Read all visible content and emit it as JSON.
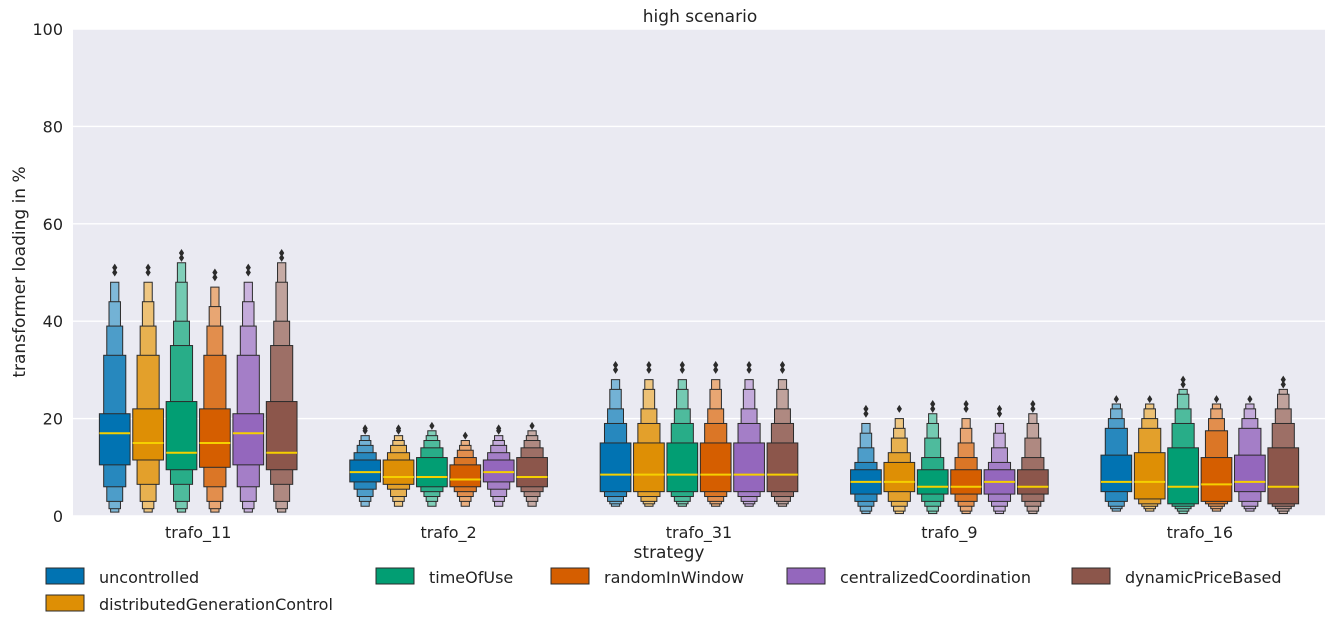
{
  "chart_data": {
    "type": "boxen",
    "title": "high scenario",
    "xlabel": "strategy",
    "ylabel": "transformer loading in %",
    "ylim": [
      0,
      100
    ],
    "yticks": [
      0,
      20,
      40,
      60,
      80,
      100
    ],
    "grid": true,
    "legend_position": "bottom",
    "categories": [
      "trafo_11",
      "trafo_2",
      "trafo_31",
      "trafo_9",
      "trafo_16"
    ],
    "series": [
      {
        "name": "uncontrolled",
        "color": "#0173b2",
        "values": [
          {
            "median": 17,
            "levels": [
              [
                10.5,
                21
              ],
              [
                6,
                33
              ],
              [
                3,
                39
              ],
              [
                1.5,
                44
              ],
              [
                0.8,
                48
              ]
            ],
            "fliers": [
              50,
              51
            ]
          },
          {
            "median": 9,
            "levels": [
              [
                7,
                11.5
              ],
              [
                5.5,
                13
              ],
              [
                4,
                14.5
              ],
              [
                3,
                15.5
              ],
              [
                2,
                16.5
              ]
            ],
            "fliers": [
              17.5,
              18
            ]
          },
          {
            "median": 8.5,
            "levels": [
              [
                5,
                15
              ],
              [
                4,
                19
              ],
              [
                3,
                22
              ],
              [
                2.5,
                26
              ],
              [
                2,
                28
              ]
            ],
            "fliers": [
              30,
              31
            ]
          },
          {
            "median": 7,
            "levels": [
              [
                4.5,
                9.5
              ],
              [
                3,
                11
              ],
              [
                2,
                14
              ],
              [
                1,
                17
              ],
              [
                0.5,
                19
              ]
            ],
            "fliers": [
              21,
              22
            ]
          },
          {
            "median": 7,
            "levels": [
              [
                5,
                12.5
              ],
              [
                3,
                18
              ],
              [
                2,
                20
              ],
              [
                1.5,
                22
              ],
              [
                1,
                23
              ]
            ],
            "fliers": [
              24
            ]
          }
        ]
      },
      {
        "name": "distributedGenerationControl",
        "color": "#de8f05",
        "values": [
          {
            "median": 15,
            "levels": [
              [
                11.5,
                22
              ],
              [
                6.5,
                33
              ],
              [
                3,
                39
              ],
              [
                1.5,
                44
              ],
              [
                0.8,
                48
              ]
            ],
            "fliers": [
              50,
              51
            ]
          },
          {
            "median": 8,
            "levels": [
              [
                6.5,
                11.5
              ],
              [
                5.5,
                13
              ],
              [
                4,
                14.5
              ],
              [
                3,
                15.5
              ],
              [
                2,
                16.5
              ]
            ],
            "fliers": [
              17.5,
              18
            ]
          },
          {
            "median": 8.5,
            "levels": [
              [
                5,
                15
              ],
              [
                4,
                19
              ],
              [
                3,
                22
              ],
              [
                2.5,
                26
              ],
              [
                2,
                28
              ]
            ],
            "fliers": [
              30,
              31
            ]
          },
          {
            "median": 7,
            "levels": [
              [
                5,
                11
              ],
              [
                3,
                13
              ],
              [
                2,
                16
              ],
              [
                1,
                18
              ],
              [
                0.5,
                20
              ]
            ],
            "fliers": [
              22
            ]
          },
          {
            "median": 7,
            "levels": [
              [
                3.5,
                13
              ],
              [
                2.5,
                18
              ],
              [
                2,
                20
              ],
              [
                1.5,
                22
              ],
              [
                1,
                23
              ]
            ],
            "fliers": [
              24
            ]
          }
        ]
      },
      {
        "name": "timeOfUse",
        "color": "#029e73",
        "values": [
          {
            "median": 13,
            "levels": [
              [
                9.5,
                23.5
              ],
              [
                6.5,
                35
              ],
              [
                3,
                40
              ],
              [
                1.5,
                48
              ],
              [
                0.8,
                52
              ]
            ],
            "fliers": [
              53,
              54
            ]
          },
          {
            "median": 8,
            "levels": [
              [
                6,
                12
              ],
              [
                5,
                14
              ],
              [
                4,
                15.5
              ],
              [
                3,
                16.5
              ],
              [
                2,
                17.5
              ]
            ],
            "fliers": [
              18.5
            ]
          },
          {
            "median": 8.5,
            "levels": [
              [
                5,
                15
              ],
              [
                4,
                19
              ],
              [
                3,
                22
              ],
              [
                2.5,
                26
              ],
              [
                2,
                28
              ]
            ],
            "fliers": [
              30,
              31
            ]
          },
          {
            "median": 6,
            "levels": [
              [
                4.5,
                9.5
              ],
              [
                3,
                12
              ],
              [
                2,
                16
              ],
              [
                1,
                19
              ],
              [
                0.5,
                21
              ]
            ],
            "fliers": [
              22,
              23
            ]
          },
          {
            "median": 6,
            "levels": [
              [
                2.5,
                14
              ],
              [
                2,
                19
              ],
              [
                1.5,
                22
              ],
              [
                1,
                25
              ],
              [
                0.5,
                26
              ]
            ],
            "fliers": [
              27,
              28
            ]
          }
        ]
      },
      {
        "name": "randomInWindow",
        "color": "#d55e00",
        "values": [
          {
            "median": 15,
            "levels": [
              [
                10,
                22
              ],
              [
                6,
                33
              ],
              [
                3,
                39
              ],
              [
                1.5,
                43
              ],
              [
                0.8,
                47
              ]
            ],
            "fliers": [
              49,
              50
            ]
          },
          {
            "median": 7.5,
            "levels": [
              [
                6,
                10.5
              ],
              [
                5,
                12
              ],
              [
                4,
                13.5
              ],
              [
                3,
                14.5
              ],
              [
                2,
                15.5
              ]
            ],
            "fliers": [
              16.5
            ]
          },
          {
            "median": 8.5,
            "levels": [
              [
                5,
                15
              ],
              [
                4,
                19
              ],
              [
                3,
                22
              ],
              [
                2.5,
                26
              ],
              [
                2,
                28
              ]
            ],
            "fliers": [
              30,
              31
            ]
          },
          {
            "median": 6,
            "levels": [
              [
                4.5,
                9.5
              ],
              [
                3,
                12
              ],
              [
                2,
                15
              ],
              [
                1,
                18
              ],
              [
                0.5,
                20
              ]
            ],
            "fliers": [
              22,
              23
            ]
          },
          {
            "median": 6.5,
            "levels": [
              [
                3,
                12
              ],
              [
                2.5,
                17.5
              ],
              [
                2,
                20
              ],
              [
                1.5,
                22
              ],
              [
                1,
                23
              ]
            ],
            "fliers": [
              24
            ]
          }
        ]
      },
      {
        "name": "centralizedCoordination",
        "color": "#9467bd",
        "values": [
          {
            "median": 17,
            "levels": [
              [
                10.5,
                21
              ],
              [
                6,
                33
              ],
              [
                3,
                39
              ],
              [
                1.5,
                44
              ],
              [
                0.8,
                48
              ]
            ],
            "fliers": [
              50,
              51
            ]
          },
          {
            "median": 9,
            "levels": [
              [
                7,
                11.5
              ],
              [
                5.5,
                13
              ],
              [
                4,
                14.5
              ],
              [
                3,
                15.5
              ],
              [
                2,
                16.5
              ]
            ],
            "fliers": [
              17.5,
              18
            ]
          },
          {
            "median": 8.5,
            "levels": [
              [
                5,
                15
              ],
              [
                4,
                19
              ],
              [
                3,
                22
              ],
              [
                2.5,
                26
              ],
              [
                2,
                28
              ]
            ],
            "fliers": [
              30,
              31
            ]
          },
          {
            "median": 7,
            "levels": [
              [
                4.5,
                9.5
              ],
              [
                3,
                11
              ],
              [
                2,
                14
              ],
              [
                1,
                17
              ],
              [
                0.5,
                19
              ]
            ],
            "fliers": [
              21,
              22
            ]
          },
          {
            "median": 7,
            "levels": [
              [
                5,
                12.5
              ],
              [
                3,
                18
              ],
              [
                2,
                20
              ],
              [
                1.5,
                22
              ],
              [
                1,
                23
              ]
            ],
            "fliers": [
              24
            ]
          }
        ]
      },
      {
        "name": "dynamicPriceBased",
        "color": "#8c564b",
        "values": [
          {
            "median": 13,
            "levels": [
              [
                9.5,
                23.5
              ],
              [
                6.5,
                35
              ],
              [
                3,
                40
              ],
              [
                1.5,
                48
              ],
              [
                0.8,
                52
              ]
            ],
            "fliers": [
              53,
              54
            ]
          },
          {
            "median": 8,
            "levels": [
              [
                6,
                12
              ],
              [
                5,
                14
              ],
              [
                4,
                15.5
              ],
              [
                3,
                16.5
              ],
              [
                2,
                17.5
              ]
            ],
            "fliers": [
              18.5
            ]
          },
          {
            "median": 8.5,
            "levels": [
              [
                5,
                15
              ],
              [
                4,
                19
              ],
              [
                3,
                22
              ],
              [
                2.5,
                26
              ],
              [
                2,
                28
              ]
            ],
            "fliers": [
              30,
              31
            ]
          },
          {
            "median": 6,
            "levels": [
              [
                4.5,
                9.5
              ],
              [
                3,
                12
              ],
              [
                2,
                16
              ],
              [
                1,
                19
              ],
              [
                0.5,
                21
              ]
            ],
            "fliers": [
              22,
              23
            ]
          },
          {
            "median": 6,
            "levels": [
              [
                2.5,
                14
              ],
              [
                2,
                19
              ],
              [
                1.5,
                22
              ],
              [
                1,
                25
              ],
              [
                0.5,
                26
              ]
            ],
            "fliers": [
              27,
              28
            ]
          }
        ]
      }
    ]
  }
}
